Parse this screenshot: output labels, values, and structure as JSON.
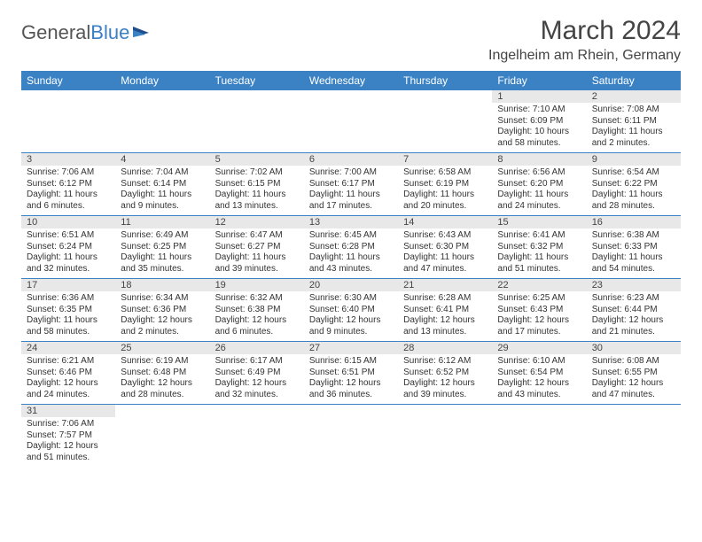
{
  "logo": {
    "text1": "General",
    "text2": "Blue"
  },
  "header": {
    "month_year": "March 2024",
    "location": "Ingelheim am Rhein, Germany"
  },
  "styling": {
    "header_bg": "#3b82c4",
    "header_text": "#ffffff",
    "daynum_bg": "#e8e8e8",
    "row_border": "#3b82c4",
    "body_text": "#333333",
    "title_fontsize": 30,
    "location_fontsize": 16,
    "dayheader_fontsize": 12,
    "cell_fontsize": 10
  },
  "day_headers": [
    "Sunday",
    "Monday",
    "Tuesday",
    "Wednesday",
    "Thursday",
    "Friday",
    "Saturday"
  ],
  "weeks": [
    [
      null,
      null,
      null,
      null,
      null,
      {
        "n": "1",
        "sunrise": "Sunrise: 7:10 AM",
        "sunset": "Sunset: 6:09 PM",
        "daylight": "Daylight: 10 hours and 58 minutes."
      },
      {
        "n": "2",
        "sunrise": "Sunrise: 7:08 AM",
        "sunset": "Sunset: 6:11 PM",
        "daylight": "Daylight: 11 hours and 2 minutes."
      }
    ],
    [
      {
        "n": "3",
        "sunrise": "Sunrise: 7:06 AM",
        "sunset": "Sunset: 6:12 PM",
        "daylight": "Daylight: 11 hours and 6 minutes."
      },
      {
        "n": "4",
        "sunrise": "Sunrise: 7:04 AM",
        "sunset": "Sunset: 6:14 PM",
        "daylight": "Daylight: 11 hours and 9 minutes."
      },
      {
        "n": "5",
        "sunrise": "Sunrise: 7:02 AM",
        "sunset": "Sunset: 6:15 PM",
        "daylight": "Daylight: 11 hours and 13 minutes."
      },
      {
        "n": "6",
        "sunrise": "Sunrise: 7:00 AM",
        "sunset": "Sunset: 6:17 PM",
        "daylight": "Daylight: 11 hours and 17 minutes."
      },
      {
        "n": "7",
        "sunrise": "Sunrise: 6:58 AM",
        "sunset": "Sunset: 6:19 PM",
        "daylight": "Daylight: 11 hours and 20 minutes."
      },
      {
        "n": "8",
        "sunrise": "Sunrise: 6:56 AM",
        "sunset": "Sunset: 6:20 PM",
        "daylight": "Daylight: 11 hours and 24 minutes."
      },
      {
        "n": "9",
        "sunrise": "Sunrise: 6:54 AM",
        "sunset": "Sunset: 6:22 PM",
        "daylight": "Daylight: 11 hours and 28 minutes."
      }
    ],
    [
      {
        "n": "10",
        "sunrise": "Sunrise: 6:51 AM",
        "sunset": "Sunset: 6:24 PM",
        "daylight": "Daylight: 11 hours and 32 minutes."
      },
      {
        "n": "11",
        "sunrise": "Sunrise: 6:49 AM",
        "sunset": "Sunset: 6:25 PM",
        "daylight": "Daylight: 11 hours and 35 minutes."
      },
      {
        "n": "12",
        "sunrise": "Sunrise: 6:47 AM",
        "sunset": "Sunset: 6:27 PM",
        "daylight": "Daylight: 11 hours and 39 minutes."
      },
      {
        "n": "13",
        "sunrise": "Sunrise: 6:45 AM",
        "sunset": "Sunset: 6:28 PM",
        "daylight": "Daylight: 11 hours and 43 minutes."
      },
      {
        "n": "14",
        "sunrise": "Sunrise: 6:43 AM",
        "sunset": "Sunset: 6:30 PM",
        "daylight": "Daylight: 11 hours and 47 minutes."
      },
      {
        "n": "15",
        "sunrise": "Sunrise: 6:41 AM",
        "sunset": "Sunset: 6:32 PM",
        "daylight": "Daylight: 11 hours and 51 minutes."
      },
      {
        "n": "16",
        "sunrise": "Sunrise: 6:38 AM",
        "sunset": "Sunset: 6:33 PM",
        "daylight": "Daylight: 11 hours and 54 minutes."
      }
    ],
    [
      {
        "n": "17",
        "sunrise": "Sunrise: 6:36 AM",
        "sunset": "Sunset: 6:35 PM",
        "daylight": "Daylight: 11 hours and 58 minutes."
      },
      {
        "n": "18",
        "sunrise": "Sunrise: 6:34 AM",
        "sunset": "Sunset: 6:36 PM",
        "daylight": "Daylight: 12 hours and 2 minutes."
      },
      {
        "n": "19",
        "sunrise": "Sunrise: 6:32 AM",
        "sunset": "Sunset: 6:38 PM",
        "daylight": "Daylight: 12 hours and 6 minutes."
      },
      {
        "n": "20",
        "sunrise": "Sunrise: 6:30 AM",
        "sunset": "Sunset: 6:40 PM",
        "daylight": "Daylight: 12 hours and 9 minutes."
      },
      {
        "n": "21",
        "sunrise": "Sunrise: 6:28 AM",
        "sunset": "Sunset: 6:41 PM",
        "daylight": "Daylight: 12 hours and 13 minutes."
      },
      {
        "n": "22",
        "sunrise": "Sunrise: 6:25 AM",
        "sunset": "Sunset: 6:43 PM",
        "daylight": "Daylight: 12 hours and 17 minutes."
      },
      {
        "n": "23",
        "sunrise": "Sunrise: 6:23 AM",
        "sunset": "Sunset: 6:44 PM",
        "daylight": "Daylight: 12 hours and 21 minutes."
      }
    ],
    [
      {
        "n": "24",
        "sunrise": "Sunrise: 6:21 AM",
        "sunset": "Sunset: 6:46 PM",
        "daylight": "Daylight: 12 hours and 24 minutes."
      },
      {
        "n": "25",
        "sunrise": "Sunrise: 6:19 AM",
        "sunset": "Sunset: 6:48 PM",
        "daylight": "Daylight: 12 hours and 28 minutes."
      },
      {
        "n": "26",
        "sunrise": "Sunrise: 6:17 AM",
        "sunset": "Sunset: 6:49 PM",
        "daylight": "Daylight: 12 hours and 32 minutes."
      },
      {
        "n": "27",
        "sunrise": "Sunrise: 6:15 AM",
        "sunset": "Sunset: 6:51 PM",
        "daylight": "Daylight: 12 hours and 36 minutes."
      },
      {
        "n": "28",
        "sunrise": "Sunrise: 6:12 AM",
        "sunset": "Sunset: 6:52 PM",
        "daylight": "Daylight: 12 hours and 39 minutes."
      },
      {
        "n": "29",
        "sunrise": "Sunrise: 6:10 AM",
        "sunset": "Sunset: 6:54 PM",
        "daylight": "Daylight: 12 hours and 43 minutes."
      },
      {
        "n": "30",
        "sunrise": "Sunrise: 6:08 AM",
        "sunset": "Sunset: 6:55 PM",
        "daylight": "Daylight: 12 hours and 47 minutes."
      }
    ],
    [
      {
        "n": "31",
        "sunrise": "Sunrise: 7:06 AM",
        "sunset": "Sunset: 7:57 PM",
        "daylight": "Daylight: 12 hours and 51 minutes."
      },
      null,
      null,
      null,
      null,
      null,
      null
    ]
  ]
}
